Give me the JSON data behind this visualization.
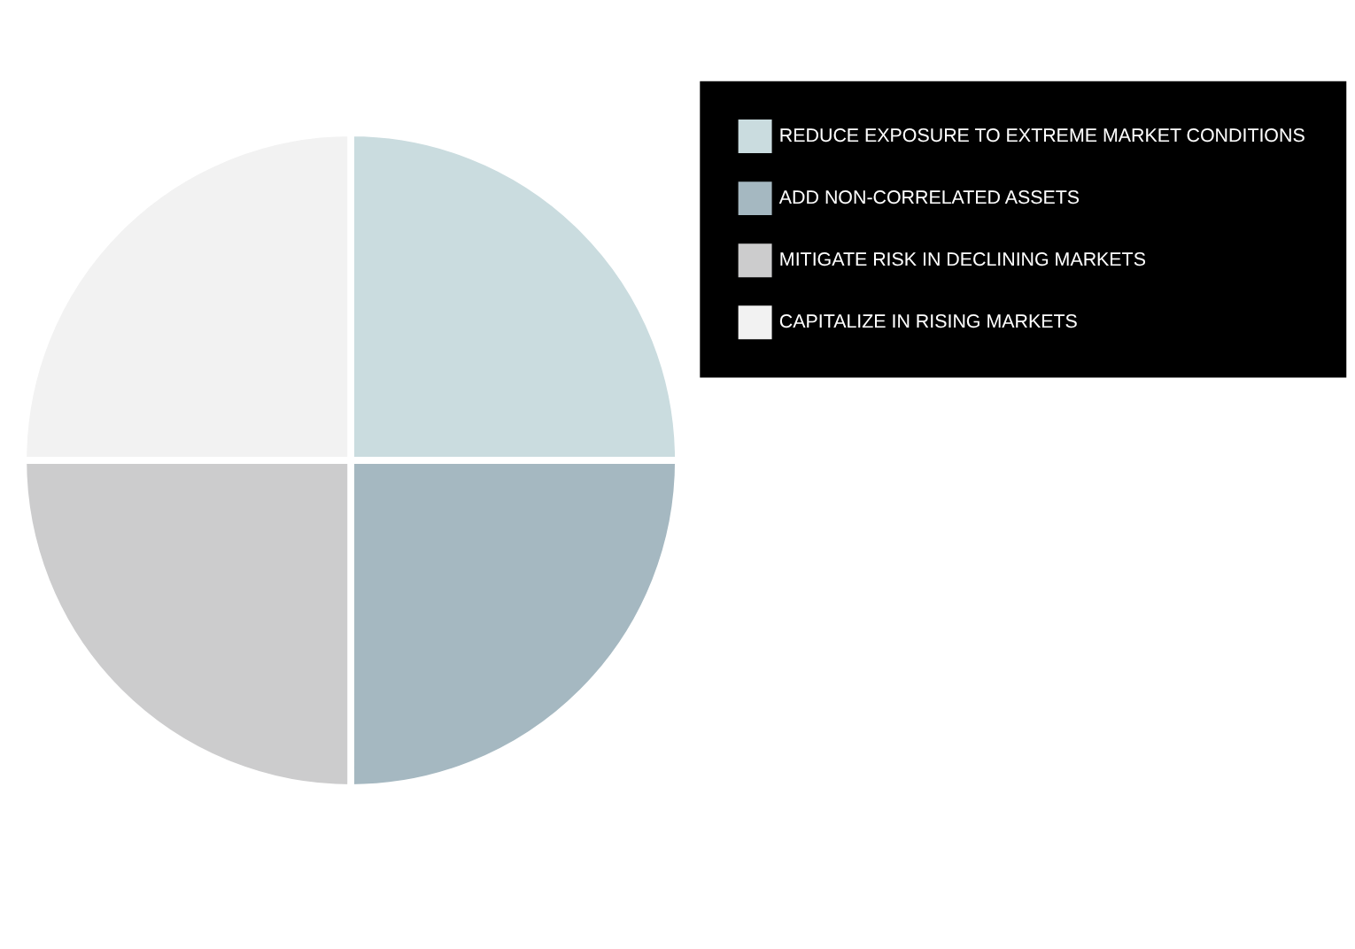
{
  "chart_data": {
    "type": "pie",
    "categories": [
      "REDUCE EXPOSURE TO EXTREME MARKET CONDITIONS",
      "ADD NON-CORRELATED ASSETS",
      "MITIGATE RISK IN DECLINING MARKETS",
      "CAPITALIZE IN RISING MARKETS"
    ],
    "values": [
      25,
      25,
      25,
      25
    ],
    "colors": [
      "#cadcdf",
      "#a5b8c1",
      "#cccccd",
      "#f2f2f2"
    ],
    "legend": "right"
  }
}
